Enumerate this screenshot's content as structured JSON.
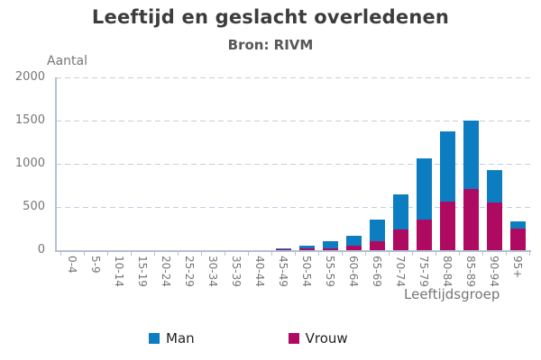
{
  "chart_data": {
    "type": "bar",
    "stacked": true,
    "title": "Leeftijd en geslacht overledenen",
    "subtitle": "Bron: RIVM",
    "xlabel": "Leeftijdsgroep",
    "ylabel": "Aantal",
    "ylim": [
      0,
      2000
    ],
    "yticks": [
      0,
      500,
      1000,
      1500,
      2000
    ],
    "grid": "horizontal-dashed",
    "legend_position": "bottom",
    "categories": [
      "0-4",
      "5-9",
      "10-14",
      "15-19",
      "20-24",
      "25-29",
      "30-34",
      "35-39",
      "40-44",
      "45-49",
      "50-54",
      "55-59",
      "60-64",
      "65-69",
      "70-74",
      "75-79",
      "80-84",
      "85-89",
      "90-94",
      "95+"
    ],
    "series": [
      {
        "name": "Man",
        "color": "#0b7dc0",
        "values": [
          0,
          0,
          0,
          0,
          0,
          0,
          0,
          0,
          0,
          13,
          31,
          76,
          110,
          250,
          408,
          715,
          810,
          790,
          374,
          92
        ]
      },
      {
        "name": "Vrouw",
        "color": "#ae0a62",
        "values": [
          0,
          0,
          0,
          0,
          0,
          0,
          0,
          0,
          0,
          12,
          17,
          24,
          55,
          106,
          239,
          350,
          565,
          705,
          551,
          245
        ]
      }
    ],
    "stack_order_bottom_to_top": [
      "Vrouw",
      "Man"
    ]
  },
  "colors": {
    "axis": "#b4c0d2",
    "gridline": "#c4cfdd",
    "title_text": "#3c3c3c",
    "subtitle_text": "#575757",
    "tick_text": "#767676",
    "legend_text": "#222222"
  }
}
